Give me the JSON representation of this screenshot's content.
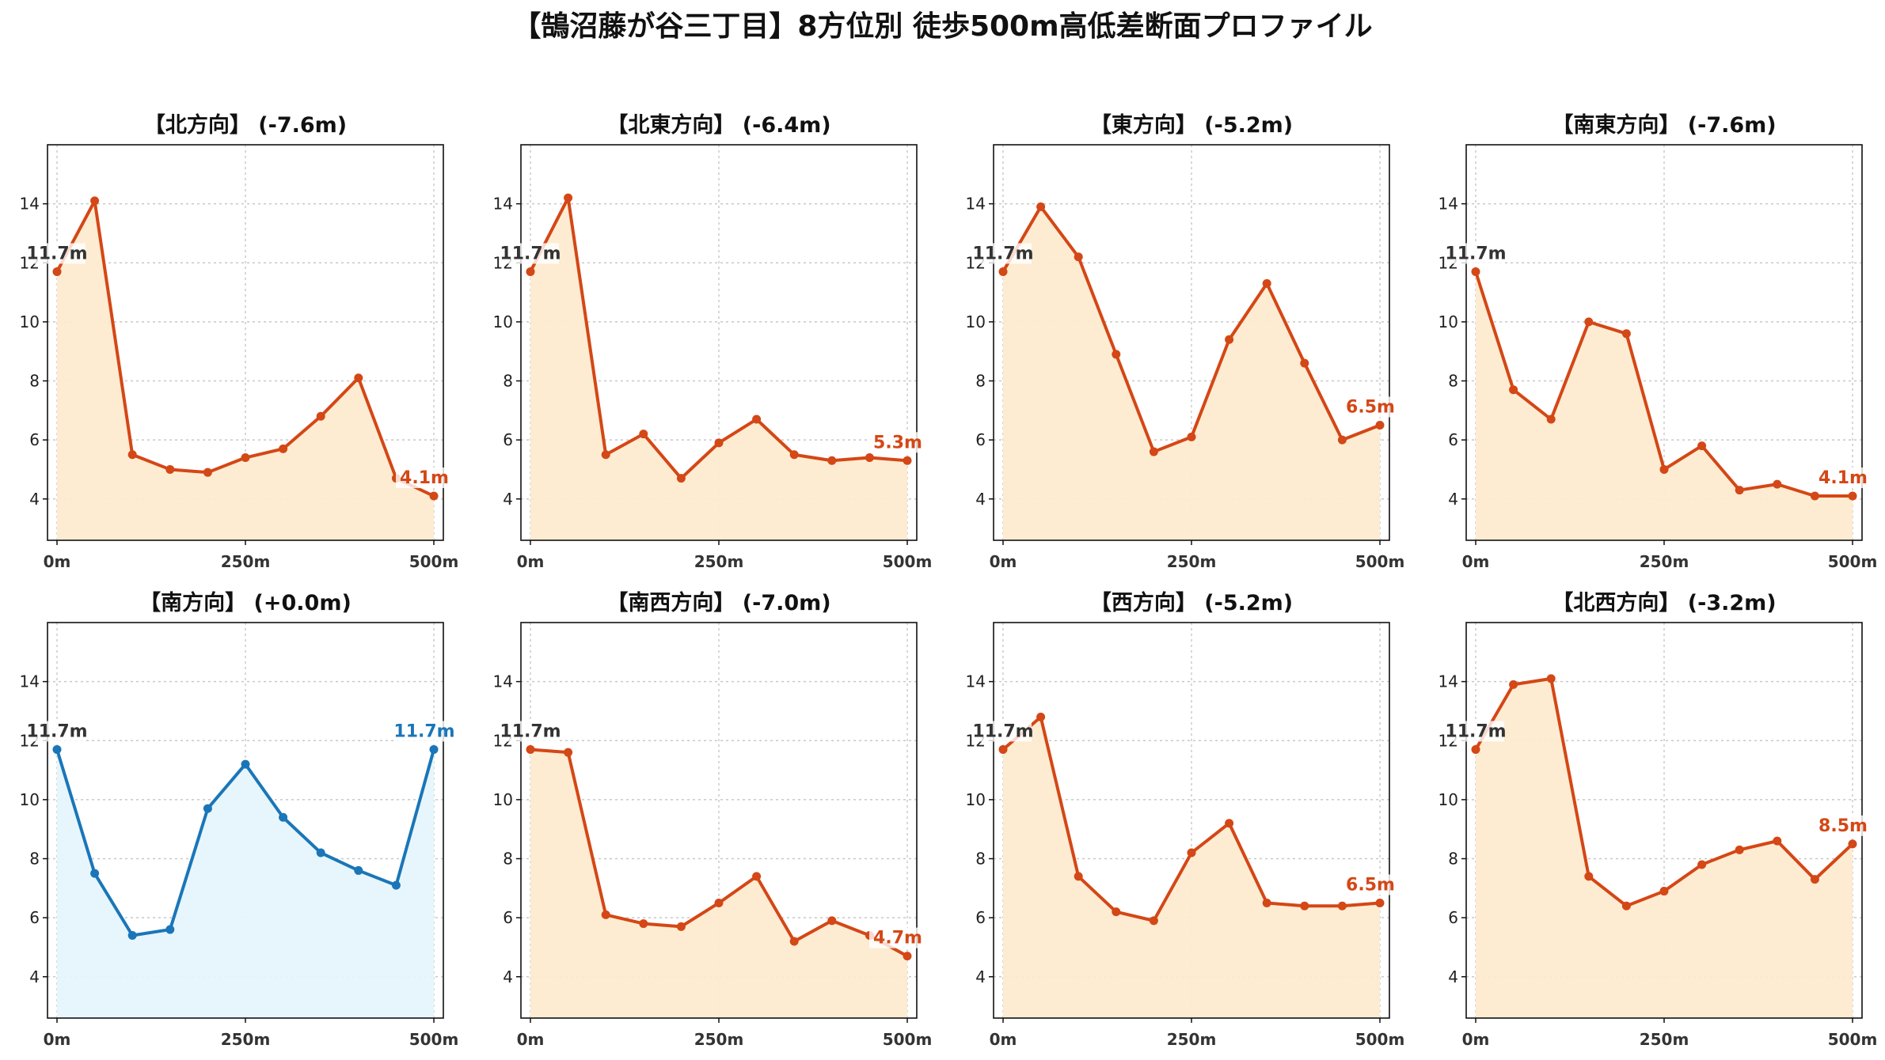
{
  "title": "【鵠沼藤が谷三丁目】8方位別 徒歩500m高低差断面プロファイル",
  "colors": {
    "descent_line": "#d44716",
    "descent_fill": "#fdebd0",
    "level_line": "#1a76b8",
    "level_fill": "#e6f5fc",
    "start_label": "#333333"
  },
  "chart_data": [
    {
      "type": "area",
      "title": "【北方向】 (-7.6m)",
      "x": [
        0,
        50,
        100,
        150,
        200,
        250,
        300,
        350,
        400,
        450,
        500
      ],
      "values": [
        11.7,
        14.1,
        5.5,
        5.0,
        4.9,
        5.4,
        5.7,
        6.8,
        8.1,
        4.7,
        4.1
      ],
      "start_label": "11.7m",
      "end_label": "4.1m",
      "style": "descent",
      "xlim": [
        0,
        500
      ],
      "ylim": [
        2.6,
        16.0
      ],
      "xticks": [
        "0m",
        "250m",
        "500m"
      ],
      "yticks": [
        4,
        6,
        8,
        10,
        12,
        14
      ],
      "grid": true
    },
    {
      "type": "area",
      "title": "【北東方向】 (-6.4m)",
      "x": [
        0,
        50,
        100,
        150,
        200,
        250,
        300,
        350,
        400,
        450,
        500
      ],
      "values": [
        11.7,
        14.2,
        5.5,
        6.2,
        4.7,
        5.9,
        6.7,
        5.5,
        5.3,
        5.4,
        5.3
      ],
      "start_label": "11.7m",
      "end_label": "5.3m",
      "style": "descent",
      "xlim": [
        0,
        500
      ],
      "ylim": [
        2.6,
        16.0
      ],
      "xticks": [
        "0m",
        "250m",
        "500m"
      ],
      "yticks": [
        4,
        6,
        8,
        10,
        12,
        14
      ],
      "grid": true
    },
    {
      "type": "area",
      "title": "【東方向】 (-5.2m)",
      "x": [
        0,
        50,
        100,
        150,
        200,
        250,
        300,
        350,
        400,
        450,
        500
      ],
      "values": [
        11.7,
        13.9,
        12.2,
        8.9,
        5.6,
        6.1,
        9.4,
        11.3,
        8.6,
        6.0,
        6.5
      ],
      "start_label": "11.7m",
      "end_label": "6.5m",
      "style": "descent",
      "xlim": [
        0,
        500
      ],
      "ylim": [
        2.6,
        16.0
      ],
      "xticks": [
        "0m",
        "250m",
        "500m"
      ],
      "yticks": [
        4,
        6,
        8,
        10,
        12,
        14
      ],
      "grid": true
    },
    {
      "type": "area",
      "title": "【南東方向】 (-7.6m)",
      "x": [
        0,
        50,
        100,
        150,
        200,
        250,
        300,
        350,
        400,
        450,
        500
      ],
      "values": [
        11.7,
        7.7,
        6.7,
        10.0,
        9.6,
        5.0,
        5.8,
        4.3,
        4.5,
        4.1,
        4.1
      ],
      "start_label": "11.7m",
      "end_label": "4.1m",
      "style": "descent",
      "xlim": [
        0,
        500
      ],
      "ylim": [
        2.6,
        16.0
      ],
      "xticks": [
        "0m",
        "250m",
        "500m"
      ],
      "yticks": [
        4,
        6,
        8,
        10,
        12,
        14
      ],
      "grid": true
    },
    {
      "type": "area",
      "title": "【南方向】 (+0.0m)",
      "x": [
        0,
        50,
        100,
        150,
        200,
        250,
        300,
        350,
        400,
        450,
        500
      ],
      "values": [
        11.7,
        7.5,
        5.4,
        5.6,
        9.7,
        11.2,
        9.4,
        8.2,
        7.6,
        7.1,
        11.7
      ],
      "start_label": "11.7m",
      "end_label": "11.7m",
      "style": "level",
      "xlim": [
        0,
        500
      ],
      "ylim": [
        2.6,
        16.0
      ],
      "xticks": [
        "0m",
        "250m",
        "500m"
      ],
      "yticks": [
        4,
        6,
        8,
        10,
        12,
        14
      ],
      "grid": true
    },
    {
      "type": "area",
      "title": "【南西方向】 (-7.0m)",
      "x": [
        0,
        50,
        100,
        150,
        200,
        250,
        300,
        350,
        400,
        450,
        500
      ],
      "values": [
        11.7,
        11.6,
        6.1,
        5.8,
        5.7,
        6.5,
        7.4,
        5.2,
        5.9,
        5.4,
        4.7
      ],
      "start_label": "11.7m",
      "end_label": "4.7m",
      "style": "descent",
      "xlim": [
        0,
        500
      ],
      "ylim": [
        2.6,
        16.0
      ],
      "xticks": [
        "0m",
        "250m",
        "500m"
      ],
      "yticks": [
        4,
        6,
        8,
        10,
        12,
        14
      ],
      "grid": true
    },
    {
      "type": "area",
      "title": "【西方向】 (-5.2m)",
      "x": [
        0,
        50,
        100,
        150,
        200,
        250,
        300,
        350,
        400,
        450,
        500
      ],
      "values": [
        11.7,
        12.8,
        7.4,
        6.2,
        5.9,
        8.2,
        9.2,
        6.5,
        6.4,
        6.4,
        6.5
      ],
      "start_label": "11.7m",
      "end_label": "6.5m",
      "style": "descent",
      "xlim": [
        0,
        500
      ],
      "ylim": [
        2.6,
        16.0
      ],
      "xticks": [
        "0m",
        "250m",
        "500m"
      ],
      "yticks": [
        4,
        6,
        8,
        10,
        12,
        14
      ],
      "grid": true
    },
    {
      "type": "area",
      "title": "【北西方向】 (-3.2m)",
      "x": [
        0,
        50,
        100,
        150,
        200,
        250,
        300,
        350,
        400,
        450,
        500
      ],
      "values": [
        11.7,
        13.9,
        14.1,
        7.4,
        6.4,
        6.9,
        7.8,
        8.3,
        8.6,
        7.3,
        8.5
      ],
      "start_label": "11.7m",
      "end_label": "8.5m",
      "style": "descent",
      "xlim": [
        0,
        500
      ],
      "ylim": [
        2.6,
        16.0
      ],
      "xticks": [
        "0m",
        "250m",
        "500m"
      ],
      "yticks": [
        4,
        6,
        8,
        10,
        12,
        14
      ],
      "grid": true
    }
  ]
}
